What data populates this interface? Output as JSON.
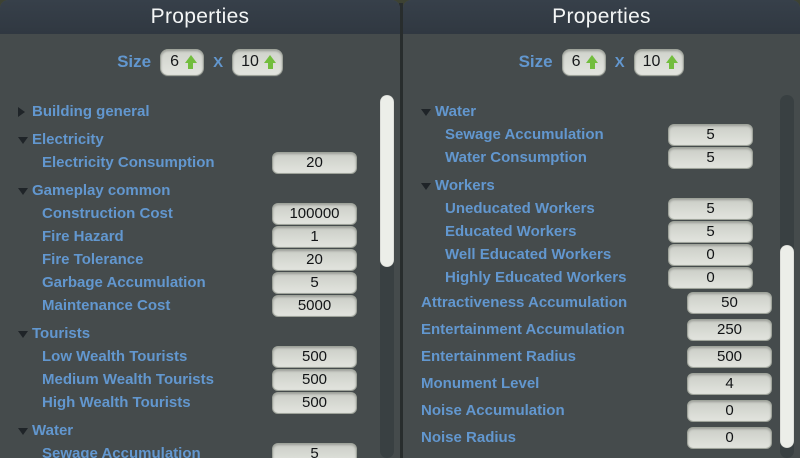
{
  "colors": {
    "accent_blue": "#6297cf",
    "green_arrow": "#72bd3d",
    "panel_body": "#454b4c",
    "panel_header": "#333a42",
    "field_background": "#d9dbd5"
  },
  "panels": [
    {
      "title": "Properties",
      "size_control": {
        "label": "Size",
        "width_value": "6",
        "separator": "X",
        "height_value": "10"
      },
      "rows": [
        {
          "kind": "section",
          "label": "Building general",
          "collapsed": true
        },
        {
          "kind": "section",
          "label": "Electricity",
          "collapsed": false
        },
        {
          "kind": "value",
          "level": "sub",
          "label": "Electricity Consumption",
          "value": "20"
        },
        {
          "kind": "section",
          "label": "Gameplay common",
          "collapsed": false
        },
        {
          "kind": "value",
          "level": "sub",
          "label": "Construction Cost",
          "value": "100000"
        },
        {
          "kind": "value",
          "level": "sub",
          "label": "Fire Hazard",
          "value": "1"
        },
        {
          "kind": "value",
          "level": "sub",
          "label": "Fire Tolerance",
          "value": "20"
        },
        {
          "kind": "value",
          "level": "sub",
          "label": "Garbage Accumulation",
          "value": "5"
        },
        {
          "kind": "value",
          "level": "sub",
          "label": "Maintenance Cost",
          "value": "5000"
        },
        {
          "kind": "section",
          "label": "Tourists",
          "collapsed": false
        },
        {
          "kind": "value",
          "level": "sub",
          "label": "Low Wealth Tourists",
          "value": "500"
        },
        {
          "kind": "value",
          "level": "sub",
          "label": "Medium Wealth Tourists",
          "value": "500"
        },
        {
          "kind": "value",
          "level": "sub",
          "label": "High Wealth Tourists",
          "value": "500"
        },
        {
          "kind": "section",
          "label": "Water",
          "collapsed": false
        },
        {
          "kind": "value",
          "level": "sub",
          "label": "Sewage Accumulation",
          "value": "5"
        }
      ]
    },
    {
      "title": "Properties",
      "size_control": {
        "label": "Size",
        "width_value": "6",
        "separator": "X",
        "height_value": "10"
      },
      "rows": [
        {
          "kind": "section",
          "label": "Water",
          "collapsed": false
        },
        {
          "kind": "value",
          "level": "sub",
          "label": "Sewage Accumulation",
          "value": "5"
        },
        {
          "kind": "value",
          "level": "sub",
          "label": "Water Consumption",
          "value": "5"
        },
        {
          "kind": "section",
          "label": "Workers",
          "collapsed": false
        },
        {
          "kind": "value",
          "level": "sub",
          "label": "Uneducated Workers",
          "value": "5"
        },
        {
          "kind": "value",
          "level": "sub",
          "label": "Educated Workers",
          "value": "5"
        },
        {
          "kind": "value",
          "level": "sub",
          "label": "Well Educated Workers",
          "value": "0"
        },
        {
          "kind": "value",
          "level": "sub",
          "label": "Highly Educated Workers",
          "value": "0"
        },
        {
          "kind": "value",
          "level": "top",
          "label": "Attractiveness Accumulation",
          "value": "50"
        },
        {
          "kind": "value",
          "level": "top",
          "label": "Entertainment Accumulation",
          "value": "250"
        },
        {
          "kind": "value",
          "level": "top",
          "label": "Entertainment Radius",
          "value": "500"
        },
        {
          "kind": "value",
          "level": "top",
          "label": "Monument Level",
          "value": "4"
        },
        {
          "kind": "value",
          "level": "top",
          "label": "Noise Accumulation",
          "value": "0"
        },
        {
          "kind": "value",
          "level": "top",
          "label": "Noise Radius",
          "value": "0"
        }
      ]
    }
  ]
}
